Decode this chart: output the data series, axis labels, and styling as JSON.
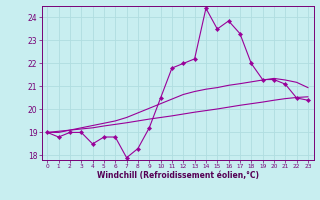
{
  "xlabel": "Windchill (Refroidissement éolien,°C)",
  "background_color": "#c8eef0",
  "line_color": "#990099",
  "grid_color": "#b0dde0",
  "xlim": [
    -0.5,
    23.5
  ],
  "ylim": [
    17.8,
    24.5
  ],
  "yticks": [
    18,
    19,
    20,
    21,
    22,
    23,
    24
  ],
  "xticks": [
    0,
    1,
    2,
    3,
    4,
    5,
    6,
    7,
    8,
    9,
    10,
    11,
    12,
    13,
    14,
    15,
    16,
    17,
    18,
    19,
    20,
    21,
    22,
    23
  ],
  "line1_x": [
    0,
    1,
    2,
    3,
    4,
    5,
    6,
    7,
    8,
    9,
    10,
    11,
    12,
    13,
    14,
    15,
    16,
    17,
    18,
    19,
    20,
    21,
    22,
    23
  ],
  "line1_y": [
    19.0,
    18.8,
    19.0,
    19.0,
    18.5,
    18.8,
    18.8,
    17.9,
    18.3,
    19.2,
    20.5,
    21.8,
    22.0,
    22.2,
    24.4,
    23.5,
    23.85,
    23.3,
    22.0,
    21.3,
    21.3,
    21.1,
    20.5,
    20.4
  ],
  "line2_x": [
    0,
    1,
    2,
    3,
    4,
    5,
    6,
    7,
    8,
    9,
    10,
    11,
    12,
    13,
    14,
    15,
    16,
    17,
    18,
    19,
    20,
    21,
    22,
    23
  ],
  "line2_y": [
    19.0,
    19.0,
    19.1,
    19.15,
    19.2,
    19.28,
    19.35,
    19.42,
    19.5,
    19.58,
    19.65,
    19.72,
    19.8,
    19.88,
    19.95,
    20.02,
    20.1,
    20.18,
    20.25,
    20.32,
    20.4,
    20.47,
    20.52,
    20.55
  ],
  "line3_x": [
    0,
    1,
    2,
    3,
    4,
    5,
    6,
    7,
    8,
    9,
    10,
    11,
    12,
    13,
    14,
    15,
    16,
    17,
    18,
    19,
    20,
    21,
    22,
    23
  ],
  "line3_y": [
    19.0,
    19.05,
    19.1,
    19.2,
    19.3,
    19.4,
    19.5,
    19.65,
    19.85,
    20.05,
    20.25,
    20.45,
    20.65,
    20.78,
    20.88,
    20.95,
    21.05,
    21.12,
    21.2,
    21.28,
    21.35,
    21.28,
    21.18,
    20.95
  ]
}
